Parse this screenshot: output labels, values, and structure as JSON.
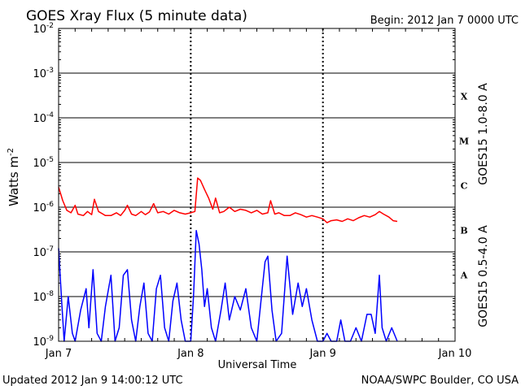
{
  "chart_data": {
    "type": "line",
    "title": "GOES Xray Flux (5 minute data)",
    "begin": "Begin:  2012 Jan 7 0000 UTC",
    "updated": "Updated 2012 Jan  9 14:00:12 UTC",
    "credit": "NOAA/SWPC Boulder, CO USA",
    "xlabel": "Universal Time",
    "ylabel": "Watts m",
    "ylabel_exp": "-2",
    "yscale": "log",
    "ylim": [
      1e-09,
      0.01
    ],
    "xlim": [
      "2012-01-07T00:00Z",
      "2012-01-10T00:00Z"
    ],
    "x_ticks": [
      "Jan 7",
      "Jan 8",
      "Jan 9",
      "Jan 10"
    ],
    "y_ticks": [
      {
        "base": "10",
        "exp": "-2"
      },
      {
        "base": "10",
        "exp": "-3"
      },
      {
        "base": "10",
        "exp": "-4"
      },
      {
        "base": "10",
        "exp": "-5"
      },
      {
        "base": "10",
        "exp": "-6"
      },
      {
        "base": "10",
        "exp": "-7"
      },
      {
        "base": "10",
        "exp": "-8"
      },
      {
        "base": "10",
        "exp": "-9"
      }
    ],
    "flare_classes": [
      {
        "label": "X",
        "low": 0.0001,
        "high": 0.001
      },
      {
        "label": "M",
        "low": 1e-05,
        "high": 0.0001
      },
      {
        "label": "C",
        "low": 1e-06,
        "high": 1e-05
      },
      {
        "label": "B",
        "low": 1e-07,
        "high": 1e-06
      },
      {
        "label": "A",
        "low": 1e-08,
        "high": 1e-07
      }
    ],
    "grid": true,
    "series": [
      {
        "name": "GOES15 1.0-8.0 A",
        "color": "#ff0000",
        "points": [
          [
            "2012-01-07T00:00Z",
            2.8e-06
          ],
          [
            "2012-01-07T00:45Z",
            1.4e-06
          ],
          [
            "2012-01-07T01:30Z",
            8.5e-07
          ],
          [
            "2012-01-07T02:15Z",
            7.5e-07
          ],
          [
            "2012-01-07T03:00Z",
            1.1e-06
          ],
          [
            "2012-01-07T03:30Z",
            7e-07
          ],
          [
            "2012-01-07T04:30Z",
            6.5e-07
          ],
          [
            "2012-01-07T05:15Z",
            8e-07
          ],
          [
            "2012-01-07T06:00Z",
            6.8e-07
          ],
          [
            "2012-01-07T06:30Z",
            1.5e-06
          ],
          [
            "2012-01-07T07:15Z",
            8e-07
          ],
          [
            "2012-01-07T08:30Z",
            6.5e-07
          ],
          [
            "2012-01-07T09:30Z",
            6.5e-07
          ],
          [
            "2012-01-07T10:30Z",
            7.5e-07
          ],
          [
            "2012-01-07T11:15Z",
            6.5e-07
          ],
          [
            "2012-01-07T12:00Z",
            8.5e-07
          ],
          [
            "2012-01-07T12:30Z",
            1.1e-06
          ],
          [
            "2012-01-07T13:15Z",
            7e-07
          ],
          [
            "2012-01-07T14:00Z",
            6.5e-07
          ],
          [
            "2012-01-07T15:00Z",
            8e-07
          ],
          [
            "2012-01-07T15:45Z",
            6.8e-07
          ],
          [
            "2012-01-07T16:30Z",
            7.8e-07
          ],
          [
            "2012-01-07T17:15Z",
            1.2e-06
          ],
          [
            "2012-01-07T18:00Z",
            7.5e-07
          ],
          [
            "2012-01-07T19:00Z",
            8e-07
          ],
          [
            "2012-01-07T20:00Z",
            7e-07
          ],
          [
            "2012-01-07T21:00Z",
            8.5e-07
          ],
          [
            "2012-01-07T22:00Z",
            7.5e-07
          ],
          [
            "2012-01-07T23:00Z",
            7e-07
          ],
          [
            "2012-01-08T00:00Z",
            7.5e-07
          ],
          [
            "2012-01-08T00:45Z",
            8e-07
          ],
          [
            "2012-01-08T01:15Z",
            4.5e-06
          ],
          [
            "2012-01-08T01:45Z",
            4e-06
          ],
          [
            "2012-01-08T02:30Z",
            2.5e-06
          ],
          [
            "2012-01-08T03:15Z",
            1.6e-06
          ],
          [
            "2012-01-08T04:00Z",
            9e-07
          ],
          [
            "2012-01-08T04:30Z",
            1.6e-06
          ],
          [
            "2012-01-08T05:15Z",
            7.5e-07
          ],
          [
            "2012-01-08T06:00Z",
            8e-07
          ],
          [
            "2012-01-08T07:00Z",
            1e-06
          ],
          [
            "2012-01-08T08:00Z",
            8e-07
          ],
          [
            "2012-01-08T09:00Z",
            9e-07
          ],
          [
            "2012-01-08T10:00Z",
            8.5e-07
          ],
          [
            "2012-01-08T11:00Z",
            7.5e-07
          ],
          [
            "2012-01-08T12:00Z",
            8.5e-07
          ],
          [
            "2012-01-08T13:00Z",
            7e-07
          ],
          [
            "2012-01-08T14:00Z",
            7.5e-07
          ],
          [
            "2012-01-08T14:30Z",
            1.4e-06
          ],
          [
            "2012-01-08T15:15Z",
            7e-07
          ],
          [
            "2012-01-08T16:00Z",
            7.5e-07
          ],
          [
            "2012-01-08T17:00Z",
            6.5e-07
          ],
          [
            "2012-01-08T18:00Z",
            6.5e-07
          ],
          [
            "2012-01-08T19:00Z",
            7.5e-07
          ],
          [
            "2012-01-08T20:00Z",
            6.8e-07
          ],
          [
            "2012-01-08T21:00Z",
            6e-07
          ],
          [
            "2012-01-08T22:00Z",
            6.5e-07
          ],
          [
            "2012-01-08T23:00Z",
            6e-07
          ],
          [
            "2012-01-09T00:00Z",
            5.5e-07
          ],
          [
            "2012-01-09T00:45Z",
            4.5e-07
          ],
          [
            "2012-01-09T01:30Z",
            5e-07
          ],
          [
            "2012-01-09T02:30Z",
            5.2e-07
          ],
          [
            "2012-01-09T03:30Z",
            4.8e-07
          ],
          [
            "2012-01-09T04:30Z",
            5.5e-07
          ],
          [
            "2012-01-09T05:30Z",
            5e-07
          ],
          [
            "2012-01-09T06:30Z",
            5.8e-07
          ],
          [
            "2012-01-09T07:30Z",
            6.5e-07
          ],
          [
            "2012-01-09T08:30Z",
            6e-07
          ],
          [
            "2012-01-09T09:30Z",
            6.8e-07
          ],
          [
            "2012-01-09T10:15Z",
            8e-07
          ],
          [
            "2012-01-09T11:00Z",
            7e-07
          ],
          [
            "2012-01-09T12:00Z",
            6e-07
          ],
          [
            "2012-01-09T12:45Z",
            5e-07
          ],
          [
            "2012-01-09T13:30Z",
            4.8e-07
          ]
        ]
      },
      {
        "name": "GOES15 0.5-4.0 A",
        "color": "#0000ff",
        "points": [
          [
            "2012-01-07T00:00Z",
            1.2e-07
          ],
          [
            "2012-01-07T00:30Z",
            1e-08
          ],
          [
            "2012-01-07T01:00Z",
            1e-09
          ],
          [
            "2012-01-07T01:45Z",
            1e-08
          ],
          [
            "2012-01-07T02:30Z",
            1.5e-09
          ],
          [
            "2012-01-07T03:00Z",
            1e-09
          ],
          [
            "2012-01-07T04:00Z",
            5e-09
          ],
          [
            "2012-01-07T05:00Z",
            1.5e-08
          ],
          [
            "2012-01-07T05:30Z",
            2e-09
          ],
          [
            "2012-01-07T06:15Z",
            4e-08
          ],
          [
            "2012-01-07T07:00Z",
            1.5e-09
          ],
          [
            "2012-01-07T07:45Z",
            1e-09
          ],
          [
            "2012-01-07T08:30Z",
            6e-09
          ],
          [
            "2012-01-07T09:30Z",
            3e-08
          ],
          [
            "2012-01-07T10:15Z",
            1e-09
          ],
          [
            "2012-01-07T11:00Z",
            2e-09
          ],
          [
            "2012-01-07T11:45Z",
            3e-08
          ],
          [
            "2012-01-07T12:30Z",
            4e-08
          ],
          [
            "2012-01-07T13:15Z",
            3e-09
          ],
          [
            "2012-01-07T14:00Z",
            1e-09
          ],
          [
            "2012-01-07T14:45Z",
            6e-09
          ],
          [
            "2012-01-07T15:30Z",
            2e-08
          ],
          [
            "2012-01-07T16:15Z",
            1.5e-09
          ],
          [
            "2012-01-07T17:00Z",
            1e-09
          ],
          [
            "2012-01-07T17:45Z",
            1.5e-08
          ],
          [
            "2012-01-07T18:30Z",
            3e-08
          ],
          [
            "2012-01-07T19:15Z",
            2e-09
          ],
          [
            "2012-01-07T20:00Z",
            1e-09
          ],
          [
            "2012-01-07T20:45Z",
            8e-09
          ],
          [
            "2012-01-07T21:30Z",
            2e-08
          ],
          [
            "2012-01-07T22:15Z",
            3e-09
          ],
          [
            "2012-01-07T23:00Z",
            1e-09
          ],
          [
            "2012-01-08T00:00Z",
            1e-09
          ],
          [
            "2012-01-08T00:30Z",
            1e-08
          ],
          [
            "2012-01-08T01:00Z",
            3e-07
          ],
          [
            "2012-01-08T01:30Z",
            1.5e-07
          ],
          [
            "2012-01-08T02:00Z",
            4e-08
          ],
          [
            "2012-01-08T02:30Z",
            6e-09
          ],
          [
            "2012-01-08T03:00Z",
            1.5e-08
          ],
          [
            "2012-01-08T03:45Z",
            2e-09
          ],
          [
            "2012-01-08T04:30Z",
            1e-09
          ],
          [
            "2012-01-08T05:30Z",
            5e-09
          ],
          [
            "2012-01-08T06:15Z",
            2e-08
          ],
          [
            "2012-01-08T07:00Z",
            3e-09
          ],
          [
            "2012-01-08T08:00Z",
            1e-08
          ],
          [
            "2012-01-08T09:00Z",
            5e-09
          ],
          [
            "2012-01-08T10:00Z",
            1.5e-08
          ],
          [
            "2012-01-08T11:00Z",
            2e-09
          ],
          [
            "2012-01-08T12:00Z",
            1e-09
          ],
          [
            "2012-01-08T12:45Z",
            8e-09
          ],
          [
            "2012-01-08T13:30Z",
            6e-08
          ],
          [
            "2012-01-08T14:00Z",
            8e-08
          ],
          [
            "2012-01-08T14:45Z",
            5e-09
          ],
          [
            "2012-01-08T15:30Z",
            1e-09
          ],
          [
            "2012-01-08T16:30Z",
            1.5e-09
          ],
          [
            "2012-01-08T17:30Z",
            8e-08
          ],
          [
            "2012-01-08T18:30Z",
            4e-09
          ],
          [
            "2012-01-08T19:30Z",
            2e-08
          ],
          [
            "2012-01-08T20:15Z",
            6e-09
          ],
          [
            "2012-01-08T21:00Z",
            1.5e-08
          ],
          [
            "2012-01-08T22:00Z",
            3e-09
          ],
          [
            "2012-01-08T23:00Z",
            1e-09
          ],
          [
            "2012-01-09T00:00Z",
            1e-09
          ],
          [
            "2012-01-09T00:45Z",
            1.5e-09
          ],
          [
            "2012-01-09T01:30Z",
            1e-09
          ],
          [
            "2012-01-09T02:30Z",
            1e-09
          ],
          [
            "2012-01-09T03:15Z",
            3e-09
          ],
          [
            "2012-01-09T04:00Z",
            1e-09
          ],
          [
            "2012-01-09T05:00Z",
            1e-09
          ],
          [
            "2012-01-09T06:00Z",
            2e-09
          ],
          [
            "2012-01-09T07:00Z",
            1e-09
          ],
          [
            "2012-01-09T08:00Z",
            4e-09
          ],
          [
            "2012-01-09T08:45Z",
            4e-09
          ],
          [
            "2012-01-09T09:30Z",
            1.5e-09
          ],
          [
            "2012-01-09T10:15Z",
            3e-08
          ],
          [
            "2012-01-09T10:45Z",
            2e-09
          ],
          [
            "2012-01-09T11:30Z",
            1e-09
          ],
          [
            "2012-01-09T12:30Z",
            2e-09
          ],
          [
            "2012-01-09T13:30Z",
            1e-09
          ]
        ]
      }
    ]
  }
}
